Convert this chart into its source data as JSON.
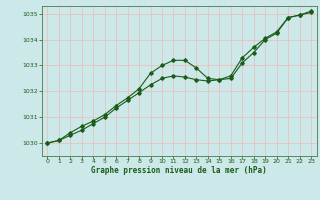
{
  "title": "Graphe pression niveau de la mer (hPa)",
  "background_color": "#cce8e8",
  "grid_color": "#b0d0d0",
  "line_color": "#1a5c1a",
  "xlim": [
    -0.5,
    23.5
  ],
  "ylim": [
    1029.5,
    1035.3
  ],
  "yticks": [
    1030,
    1031,
    1032,
    1033,
    1034,
    1035
  ],
  "xticks": [
    0,
    1,
    2,
    3,
    4,
    5,
    6,
    7,
    8,
    9,
    10,
    11,
    12,
    13,
    14,
    15,
    16,
    17,
    18,
    19,
    20,
    21,
    22,
    23
  ],
  "line1_x": [
    0,
    1,
    2,
    3,
    4,
    5,
    6,
    7,
    8,
    9,
    10,
    11,
    12,
    13,
    14,
    15,
    16,
    17,
    18,
    19,
    20,
    21,
    22,
    23
  ],
  "line1_y": [
    1030.0,
    1030.1,
    1030.4,
    1030.65,
    1030.85,
    1031.1,
    1031.45,
    1031.75,
    1032.1,
    1032.7,
    1033.0,
    1033.2,
    1033.2,
    1032.9,
    1032.5,
    1032.45,
    1032.5,
    1033.1,
    1033.5,
    1034.0,
    1034.25,
    1034.85,
    1034.95,
    1035.05
  ],
  "line2_x": [
    0,
    1,
    2,
    3,
    4,
    5,
    6,
    7,
    8,
    9,
    10,
    11,
    12,
    13,
    14,
    15,
    16,
    17,
    18,
    19,
    20,
    21,
    22,
    23
  ],
  "line2_y": [
    1030.0,
    1030.1,
    1030.3,
    1030.5,
    1030.75,
    1031.0,
    1031.35,
    1031.65,
    1031.95,
    1032.25,
    1032.5,
    1032.6,
    1032.55,
    1032.45,
    1032.4,
    1032.45,
    1032.6,
    1033.3,
    1033.7,
    1034.05,
    1034.3,
    1034.85,
    1034.95,
    1035.1
  ]
}
